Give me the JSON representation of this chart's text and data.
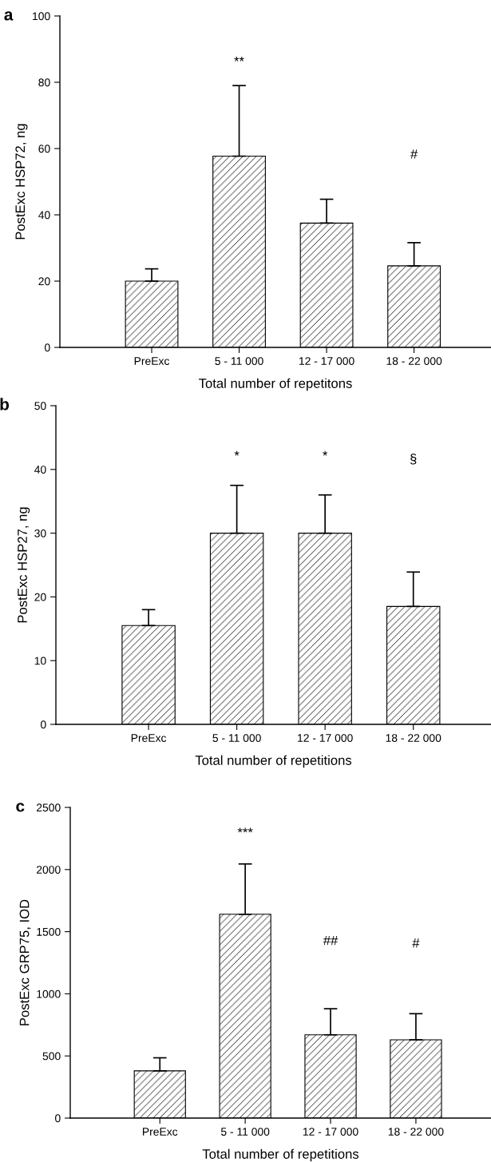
{
  "chart_data": [
    {
      "type": "bar",
      "title": "a",
      "xlabel": "Total number of repetitons",
      "ylabel": "PostExc HSP72, ng",
      "categories": [
        "PreExc",
        "5 - 11 000",
        "12 - 17 000",
        "18 - 22 000"
      ],
      "values": [
        20,
        57.7,
        37.5,
        24.6
      ],
      "errors": [
        [
          20,
          23.7
        ],
        [
          57.7,
          79
        ],
        [
          37.5,
          44.7
        ],
        [
          24.6,
          31.6
        ]
      ],
      "color": "#000000",
      "ylim": [
        0,
        100
      ],
      "yticks": [
        0,
        20,
        40,
        60,
        80,
        100
      ],
      "grid": false,
      "legend": false,
      "annotations": [
        "**",
        "#"
      ]
    },
    {
      "type": "bar",
      "title": "b",
      "xlabel": "Total number of repetitions",
      "ylabel": "PostExc HSP27, ng",
      "categories": [
        "PreExc",
        "5 - 11 000",
        "12 - 17 000",
        "18 - 22 000"
      ],
      "values": [
        15.5,
        30,
        30,
        18.5
      ],
      "errors": [
        [
          15.5,
          18
        ],
        [
          30,
          37.5
        ],
        [
          30,
          36
        ],
        [
          18.5,
          23.9
        ]
      ],
      "color": "#000000",
      "ylim": [
        0,
        50
      ],
      "yticks": [
        0,
        10,
        20,
        30,
        40,
        50
      ],
      "grid": false,
      "legend": false,
      "annotations": [
        "*",
        "*",
        "§"
      ]
    },
    {
      "type": "bar",
      "title": "c",
      "xlabel": "Total number of repetitions",
      "ylabel": "PostExc GRP75, IOD",
      "categories": [
        "PreExc",
        "5 - 11 000",
        "12 - 17 000",
        "18 - 22 000"
      ],
      "values": [
        380,
        1640,
        670,
        630
      ],
      "errors": [
        [
          380,
          485
        ],
        [
          1640,
          2045
        ],
        [
          670,
          880
        ],
        [
          630,
          840
        ]
      ],
      "color": "#000000",
      "ylim": [
        0,
        2500
      ],
      "yticks": [
        0,
        500,
        1000,
        1500,
        2000,
        2500
      ],
      "grid": false,
      "legend": false,
      "annotations": [
        "***",
        "##",
        "#"
      ]
    }
  ]
}
